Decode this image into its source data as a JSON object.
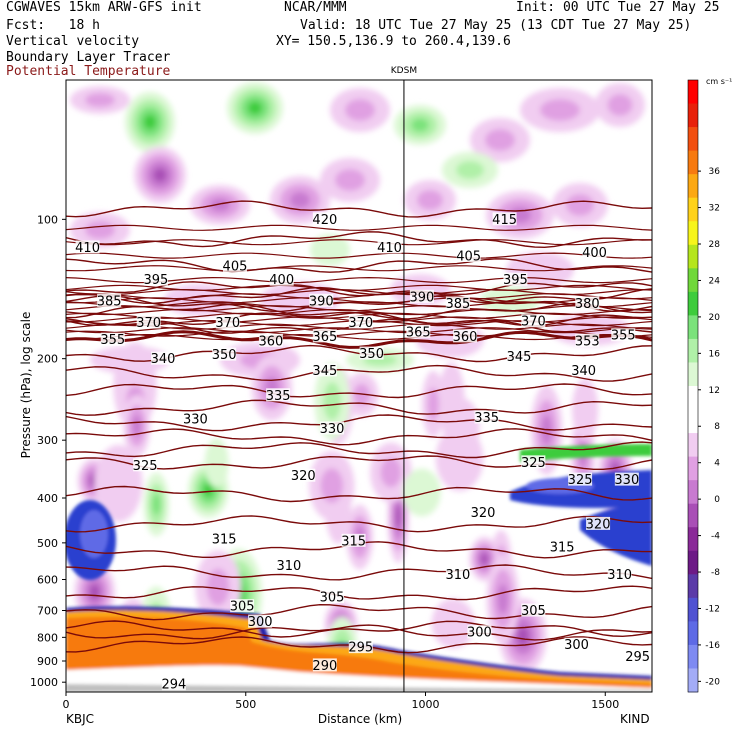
{
  "header": {
    "model": "CGWAVES 15km ARW-GFS init",
    "center": "NCAR/MMM",
    "init": "Init: 00 UTC Tue 27 May 25",
    "fcst": "Fcst:   18 h",
    "valid": "Valid: 18 UTC Tue 27 May 25 (13 CDT Tue 27 May 25)",
    "field1": "Vertical velocity",
    "field2": "Boundary Layer Tracer",
    "field3": "Potential Temperature",
    "xy": "XY= 150.5,136.9 to 260.4,139.6"
  },
  "colors": {
    "theta": "#7a0a0a",
    "tracer": "#8b1a1a"
  },
  "chart_data": {
    "type": "heatmap",
    "marker_label": "KDSM",
    "marker_km": 940,
    "xlabel": "Distance (km)",
    "ylabel": "Pressure (hPa), log scale",
    "x_ticks": [
      "0",
      "500",
      "1000",
      "1500"
    ],
    "xlim": [
      0,
      1630
    ],
    "y_ticks": [
      "100",
      "200",
      "300",
      "400",
      "500",
      "600",
      "700",
      "800",
      "900",
      "1000"
    ],
    "ylim": [
      50,
      1050
    ],
    "y_scale": "log",
    "left_station": "KBJC",
    "right_station": "KIND",
    "colorbar": {
      "unit": "cm s⁻¹",
      "ticks": [
        "36",
        "32",
        "28",
        "24",
        "20",
        "16",
        "12",
        "8",
        "4",
        "0",
        "-4",
        "-8",
        "-12",
        "-16",
        "-20"
      ],
      "colors": [
        "#ff0000",
        "#e8210a",
        "#f24f10",
        "#f77a10",
        "#fca813",
        "#ffd21a",
        "#f7f51a",
        "#b5e61d",
        "#70d83a",
        "#3ecc3c",
        "#7be27b",
        "#b0f0a8",
        "#dcf8d4",
        "#ffffff",
        "#ffffff",
        "#f1cdf1",
        "#e0a0e2",
        "#c87ad0",
        "#a94fb6",
        "#8a2a98",
        "#6d1a86",
        "#5b3aa8",
        "#5052d2",
        "#5e6ae6",
        "#7e8af2",
        "#a3acf7"
      ]
    },
    "theta_contours": [
      {
        "value": 294,
        "label": "294"
      },
      {
        "value": 290,
        "label": "290"
      },
      {
        "value": 295,
        "label": "295"
      },
      {
        "value": 300,
        "label": "300"
      },
      {
        "value": 305,
        "label": "305"
      },
      {
        "value": 310,
        "label": "310"
      },
      {
        "value": 315,
        "label": "315"
      },
      {
        "value": 320,
        "label": "320"
      },
      {
        "value": 325,
        "label": "325"
      },
      {
        "value": 330,
        "label": "330"
      },
      {
        "value": 335,
        "label": "335"
      },
      {
        "value": 340,
        "label": "340"
      },
      {
        "value": 345,
        "label": "345"
      },
      {
        "value": 350,
        "label": "350"
      },
      {
        "value": 355,
        "label": "355"
      },
      {
        "value": 360,
        "label": "360"
      },
      {
        "value": 365,
        "label": "365"
      },
      {
        "value": 370,
        "label": "370"
      },
      {
        "value": 380,
        "label": "380"
      },
      {
        "value": 385,
        "label": "385"
      },
      {
        "value": 390,
        "label": "390"
      },
      {
        "value": 395,
        "label": "395"
      },
      {
        "value": 400,
        "label": "400"
      },
      {
        "value": 405,
        "label": "405"
      },
      {
        "value": 410,
        "label": "410"
      },
      {
        "value": 415,
        "label": "415"
      },
      {
        "value": 420,
        "label": "420"
      }
    ],
    "theta_label_positions": [
      {
        "label": "410",
        "km": 60,
        "p": 115
      },
      {
        "label": "420",
        "km": 720,
        "p": 100
      },
      {
        "label": "415",
        "km": 1220,
        "p": 100
      },
      {
        "label": "410",
        "km": 900,
        "p": 115
      },
      {
        "label": "405",
        "km": 470,
        "p": 126
      },
      {
        "label": "405",
        "km": 1120,
        "p": 120
      },
      {
        "label": "400",
        "km": 600,
        "p": 135
      },
      {
        "label": "400",
        "km": 1470,
        "p": 118
      },
      {
        "label": "395",
        "km": 250,
        "p": 135
      },
      {
        "label": "395",
        "km": 1250,
        "p": 135
      },
      {
        "label": "390",
        "km": 710,
        "p": 150
      },
      {
        "label": "390",
        "km": 990,
        "p": 147
      },
      {
        "label": "385",
        "km": 120,
        "p": 150
      },
      {
        "label": "385",
        "km": 1090,
        "p": 152
      },
      {
        "label": "380",
        "km": 1450,
        "p": 152
      },
      {
        "label": "370",
        "km": 230,
        "p": 167
      },
      {
        "label": "370",
        "km": 450,
        "p": 167
      },
      {
        "label": "370",
        "km": 820,
        "p": 167
      },
      {
        "label": "370",
        "km": 1300,
        "p": 166
      },
      {
        "label": "365",
        "km": 720,
        "p": 179
      },
      {
        "label": "365",
        "km": 980,
        "p": 175
      },
      {
        "label": "360",
        "km": 570,
        "p": 183
      },
      {
        "label": "360",
        "km": 1110,
        "p": 179
      },
      {
        "label": "355",
        "km": 130,
        "p": 182
      },
      {
        "label": "355",
        "km": 1550,
        "p": 178
      },
      {
        "label": "353",
        "km": 1450,
        "p": 183
      },
      {
        "label": "350",
        "km": 440,
        "p": 196
      },
      {
        "label": "350",
        "km": 850,
        "p": 195
      },
      {
        "label": "345",
        "km": 720,
        "p": 212
      },
      {
        "label": "345",
        "km": 1260,
        "p": 198
      },
      {
        "label": "340",
        "km": 270,
        "p": 200
      },
      {
        "label": "340",
        "km": 1440,
        "p": 212
      },
      {
        "label": "335",
        "km": 590,
        "p": 240
      },
      {
        "label": "335",
        "km": 1170,
        "p": 268
      },
      {
        "label": "330",
        "km": 360,
        "p": 270
      },
      {
        "label": "330",
        "km": 740,
        "p": 283
      },
      {
        "label": "330",
        "km": 1560,
        "p": 365
      },
      {
        "label": "325",
        "km": 220,
        "p": 340
      },
      {
        "label": "325",
        "km": 1300,
        "p": 335
      },
      {
        "label": "325",
        "km": 1430,
        "p": 365
      },
      {
        "label": "320",
        "km": 660,
        "p": 358
      },
      {
        "label": "320",
        "km": 1160,
        "p": 430
      },
      {
        "label": "320",
        "km": 1480,
        "p": 455
      },
      {
        "label": "315",
        "km": 440,
        "p": 490
      },
      {
        "label": "315",
        "km": 800,
        "p": 495
      },
      {
        "label": "315",
        "km": 1380,
        "p": 510
      },
      {
        "label": "310",
        "km": 620,
        "p": 560
      },
      {
        "label": "310",
        "km": 1090,
        "p": 585
      },
      {
        "label": "310",
        "km": 1540,
        "p": 585
      },
      {
        "label": "305",
        "km": 740,
        "p": 655
      },
      {
        "label": "305",
        "km": 490,
        "p": 685
      },
      {
        "label": "305",
        "km": 1300,
        "p": 700
      },
      {
        "label": "300",
        "km": 540,
        "p": 740
      },
      {
        "label": "300",
        "km": 1150,
        "p": 780
      },
      {
        "label": "300",
        "km": 1420,
        "p": 830
      },
      {
        "label": "295",
        "km": 820,
        "p": 840
      },
      {
        "label": "295",
        "km": 1590,
        "p": 880
      },
      {
        "label": "290",
        "km": 720,
        "p": 920
      },
      {
        "label": "294",
        "km": 300,
        "p": 1010
      }
    ]
  }
}
